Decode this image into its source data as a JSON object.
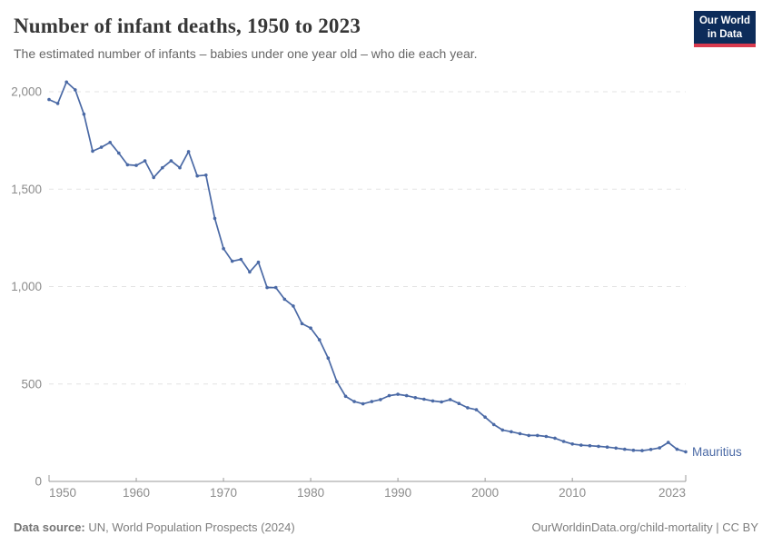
{
  "header": {
    "title": "Number of infant deaths, 1950 to 2023",
    "subtitle": "The estimated number of infants – babies under one year old – who die each year.",
    "logo": {
      "line1": "Our World",
      "line2": "in Data"
    }
  },
  "footer": {
    "datasource_label": "Data source:",
    "datasource_value": " UN, World Population Prospects (2024)",
    "attribution": "OurWorldinData.org/child-mortality | CC BY"
  },
  "colors": {
    "series_line": "#4a69a5",
    "logo_bg": "#0d2c5a",
    "logo_accent": "#d93a4e",
    "grid": "#e3e3e3",
    "axis": "#9a9a9a",
    "tick_label": "#8c8c8c"
  },
  "chart_data": {
    "type": "line",
    "title": "Number of infant deaths, 1950 to 2023",
    "xlabel": "",
    "ylabel": "",
    "xlim": [
      1950,
      2023
    ],
    "ylim": [
      0,
      2000
    ],
    "x_ticks": [
      1950,
      1960,
      1970,
      1980,
      1990,
      2000,
      2010,
      2023
    ],
    "y_ticks": [
      0,
      500,
      1000,
      1500,
      2000
    ],
    "y_tick_labels": [
      "0",
      "500",
      "1,000",
      "1,500",
      "2,000"
    ],
    "grid": "horizontal-dashed",
    "legend_position": "end-of-line-label",
    "series": [
      {
        "name": "Mauritius",
        "color": "#4a69a5",
        "x": [
          1950,
          1951,
          1952,
          1953,
          1954,
          1955,
          1956,
          1957,
          1958,
          1959,
          1960,
          1961,
          1962,
          1963,
          1964,
          1965,
          1966,
          1967,
          1968,
          1969,
          1970,
          1971,
          1972,
          1973,
          1974,
          1975,
          1976,
          1977,
          1978,
          1979,
          1980,
          1981,
          1982,
          1983,
          1984,
          1985,
          1986,
          1987,
          1988,
          1989,
          1990,
          1991,
          1992,
          1993,
          1994,
          1995,
          1996,
          1997,
          1998,
          1999,
          2000,
          2001,
          2002,
          2003,
          2004,
          2005,
          2006,
          2007,
          2008,
          2009,
          2010,
          2011,
          2012,
          2013,
          2014,
          2015,
          2016,
          2017,
          2018,
          2019,
          2020,
          2021,
          2022,
          2023
        ],
        "values": [
          1960,
          1940,
          2050,
          2010,
          1885,
          1695,
          1715,
          1740,
          1685,
          1625,
          1622,
          1645,
          1560,
          1610,
          1645,
          1610,
          1693,
          1568,
          1572,
          1350,
          1195,
          1130,
          1140,
          1075,
          1125,
          995,
          995,
          935,
          900,
          810,
          787,
          727,
          633,
          512,
          437,
          410,
          398,
          410,
          420,
          440,
          447,
          440,
          430,
          422,
          413,
          408,
          420,
          400,
          378,
          368,
          330,
          292,
          264,
          255,
          245,
          236,
          236,
          231,
          222,
          205,
          192,
          186,
          183,
          180,
          176,
          171,
          165,
          160,
          158,
          164,
          172,
          200,
          165,
          152
        ]
      }
    ]
  }
}
